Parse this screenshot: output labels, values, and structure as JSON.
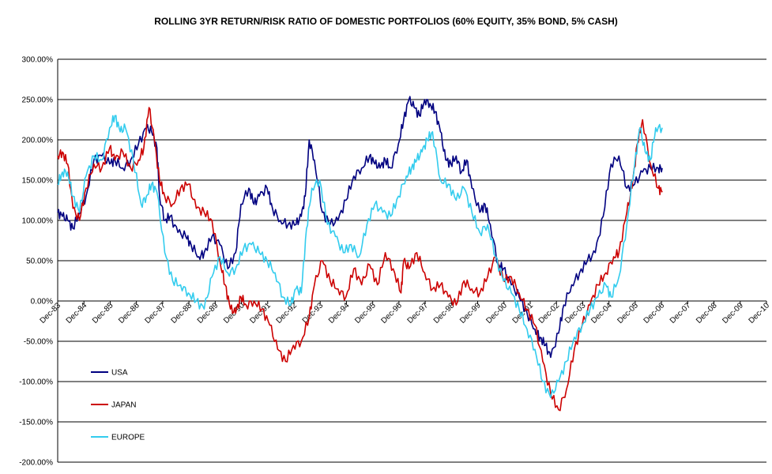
{
  "chart_data": {
    "type": "line",
    "title": "ROLLING 3YR RETURN/RISK RATIO OF DOMESTIC PORTFOLIOS (60% EQUITY, 35% BOND, 5% CASH)",
    "xlabel": "",
    "ylabel": "",
    "ylim": [
      -200,
      300
    ],
    "y_ticks": [
      "300.00%",
      "250.00%",
      "200.00%",
      "150.00%",
      "100.00%",
      "50.00%",
      "0.00%",
      "-50.00%",
      "-100.00%",
      "-150.00%",
      "-200.00%"
    ],
    "y_tick_values": [
      300,
      250,
      200,
      150,
      100,
      50,
      0,
      -50,
      -100,
      -150,
      -200
    ],
    "x_range": [
      1983.92,
      2010.92
    ],
    "x_ticks": [
      "Dec-83",
      "Dec-84",
      "Dec-85",
      "Dec-86",
      "Dec-87",
      "Dec-88",
      "Dec-89",
      "Dec-90",
      "Dec-91",
      "Dec-92",
      "Dec-93",
      "Dec-94",
      "Dec-95",
      "Dec-96",
      "Dec-97",
      "Dec-98",
      "Dec-99",
      "Dec-00",
      "Dec-01",
      "Dec-02",
      "Dec-03",
      "Dec-04",
      "Dec-05",
      "Dec-06",
      "Dec-07",
      "Dec-08",
      "Dec-09",
      "Dec-10"
    ],
    "x_tick_values": [
      1983.92,
      1984.92,
      1985.92,
      1986.92,
      1987.92,
      1988.92,
      1989.92,
      1990.92,
      1991.92,
      1992.92,
      1993.92,
      1994.92,
      1995.92,
      1996.92,
      1997.92,
      1998.92,
      1999.92,
      2000.92,
      2001.92,
      2002.92,
      2003.92,
      2004.92,
      2005.92,
      2006.92,
      2007.92,
      2008.92,
      2009.92,
      2010.92
    ],
    "grid": "horizontal",
    "legend_position": "bottom-left",
    "series": [
      {
        "name": "USA",
        "color": "#000080",
        "x": [
          1983.92,
          1984.1,
          1984.3,
          1984.5,
          1984.75,
          1985.0,
          1985.3,
          1985.6,
          1985.9,
          1986.1,
          1986.4,
          1986.7,
          1987.0,
          1987.3,
          1987.5,
          1987.7,
          1987.8,
          1988.0,
          1988.2,
          1988.5,
          1988.8,
          1989.0,
          1989.3,
          1989.5,
          1989.8,
          1990.1,
          1990.4,
          1990.7,
          1990.9,
          1991.2,
          1991.4,
          1991.6,
          1991.9,
          1992.1,
          1992.4,
          1992.7,
          1993.0,
          1993.2,
          1993.35,
          1993.5,
          1993.7,
          1994.0,
          1994.3,
          1994.6,
          1994.9,
          1995.2,
          1995.5,
          1995.8,
          1996.0,
          1996.2,
          1996.4,
          1996.6,
          1996.9,
          1997.1,
          1997.3,
          1997.5,
          1997.7,
          1997.9,
          1998.1,
          1998.3,
          1998.5,
          1998.7,
          1998.9,
          1999.1,
          1999.3,
          1999.5,
          1999.7,
          2000.0,
          2000.2,
          2000.4,
          2000.7,
          2000.9,
          2001.2,
          2001.5,
          2001.8,
          2002.1,
          2002.3,
          2002.5,
          2002.7,
          2003.0,
          2003.2,
          2003.5,
          2003.8,
          2004.1,
          2004.4,
          2004.7,
          2005.0,
          2005.3,
          2005.6,
          2005.9,
          2006.2,
          2006.5,
          2006.8,
          2006.95
        ],
        "y": [
          110,
          105,
          100,
          90,
          110,
          130,
          175,
          180,
          170,
          175,
          165,
          175,
          195,
          215,
          210,
          190,
          130,
          100,
          105,
          85,
          80,
          70,
          55,
          60,
          80,
          70,
          40,
          60,
          120,
          140,
          120,
          130,
          140,
          115,
          100,
          95,
          95,
          105,
          130,
          200,
          175,
          110,
          95,
          100,
          125,
          155,
          165,
          180,
          170,
          165,
          175,
          165,
          195,
          225,
          250,
          240,
          230,
          250,
          245,
          235,
          210,
          175,
          170,
          180,
          160,
          175,
          140,
          110,
          120,
          95,
          45,
          40,
          20,
          5,
          -15,
          -35,
          -45,
          -55,
          -70,
          -40,
          -5,
          20,
          35,
          50,
          60,
          105,
          170,
          180,
          140,
          145,
          160,
          165,
          165,
          165
        ]
      },
      {
        "name": "JAPAN",
        "color": "#cc0000",
        "x": [
          1983.92,
          1984.1,
          1984.3,
          1984.5,
          1984.75,
          1985.0,
          1985.3,
          1985.6,
          1985.9,
          1986.1,
          1986.4,
          1986.7,
          1987.0,
          1987.2,
          1987.4,
          1987.6,
          1987.8,
          1988.0,
          1988.3,
          1988.6,
          1988.9,
          1989.2,
          1989.5,
          1989.8,
          1990.1,
          1990.3,
          1990.5,
          1990.7,
          1990.9,
          1991.1,
          1991.4,
          1991.7,
          1992.0,
          1992.3,
          1992.6,
          1992.9,
          1993.2,
          1993.5,
          1993.7,
          1994.0,
          1994.3,
          1994.6,
          1994.9,
          1995.2,
          1995.5,
          1995.8,
          1996.1,
          1996.4,
          1996.7,
          1997.0,
          1997.1,
          1997.3,
          1997.6,
          1997.9,
          1998.2,
          1998.5,
          1998.8,
          1999.1,
          1999.4,
          1999.7,
          2000.0,
          2000.3,
          2000.6,
          2000.9,
          2001.2,
          2001.5,
          2001.8,
          2002.1,
          2002.4,
          2002.7,
          2003.0,
          2003.3,
          2003.6,
          2003.9,
          2004.2,
          2004.5,
          2004.8,
          2005.1,
          2005.3,
          2005.6,
          2005.8,
          2006.0,
          2006.2,
          2006.5,
          2006.8,
          2006.95
        ],
        "y": [
          180,
          185,
          170,
          115,
          100,
          140,
          170,
          165,
          190,
          175,
          185,
          165,
          175,
          190,
          240,
          200,
          150,
          130,
          120,
          140,
          145,
          115,
          110,
          100,
          50,
          20,
          -10,
          -15,
          5,
          -5,
          0,
          -10,
          -30,
          -60,
          -75,
          -55,
          -50,
          -20,
          20,
          50,
          25,
          15,
          5,
          40,
          20,
          45,
          20,
          60,
          40,
          10,
          50,
          40,
          60,
          35,
          15,
          20,
          5,
          -5,
          25,
          15,
          10,
          30,
          55,
          25,
          30,
          10,
          -10,
          -30,
          -75,
          -115,
          -135,
          -110,
          -60,
          -30,
          -5,
          20,
          35,
          55,
          60,
          110,
          140,
          195,
          225,
          170,
          140,
          135
        ]
      },
      {
        "name": "EUROPE",
        "color": "#33ccee",
        "x": [
          1983.92,
          1984.1,
          1984.3,
          1984.5,
          1984.75,
          1985.0,
          1985.3,
          1985.6,
          1985.9,
          1986.1,
          1986.3,
          1986.5,
          1986.8,
          1987.1,
          1987.3,
          1987.5,
          1987.7,
          1988.0,
          1988.3,
          1988.6,
          1988.9,
          1989.2,
          1989.5,
          1989.8,
          1990.1,
          1990.4,
          1990.7,
          1991.0,
          1991.3,
          1991.6,
          1991.9,
          1992.2,
          1992.5,
          1992.8,
          1993.0,
          1993.2,
          1993.4,
          1993.6,
          1993.9,
          1994.2,
          1994.5,
          1994.8,
          1995.1,
          1995.4,
          1995.7,
          1996.0,
          1996.3,
          1996.6,
          1996.9,
          1997.2,
          1997.4,
          1997.6,
          1997.8,
          1998.0,
          1998.2,
          1998.5,
          1998.8,
          1999.1,
          1999.4,
          1999.7,
          2000.0,
          2000.3,
          2000.6,
          2000.9,
          2001.2,
          2001.5,
          2001.8,
          2002.1,
          2002.4,
          2002.7,
          2003.0,
          2003.3,
          2003.6,
          2003.9,
          2004.2,
          2004.5,
          2004.8,
          2005.0,
          2005.3,
          2005.6,
          2005.9,
          2006.1,
          2006.3,
          2006.5,
          2006.7,
          2006.95
        ],
        "y": [
          145,
          160,
          160,
          130,
          110,
          155,
          180,
          175,
          215,
          230,
          210,
          215,
          175,
          120,
          130,
          145,
          135,
          60,
          25,
          20,
          10,
          0,
          -10,
          30,
          55,
          35,
          40,
          65,
          70,
          60,
          50,
          35,
          5,
          -5,
          15,
          10,
          90,
          140,
          150,
          95,
          80,
          60,
          70,
          55,
          95,
          120,
          110,
          105,
          130,
          155,
          165,
          175,
          185,
          200,
          210,
          150,
          145,
          125,
          140,
          110,
          85,
          95,
          55,
          25,
          10,
          -10,
          -35,
          -60,
          -100,
          -120,
          -100,
          -75,
          -45,
          -30,
          -10,
          5,
          20,
          5,
          30,
          95,
          170,
          215,
          185,
          175,
          215,
          215
        ]
      }
    ]
  }
}
